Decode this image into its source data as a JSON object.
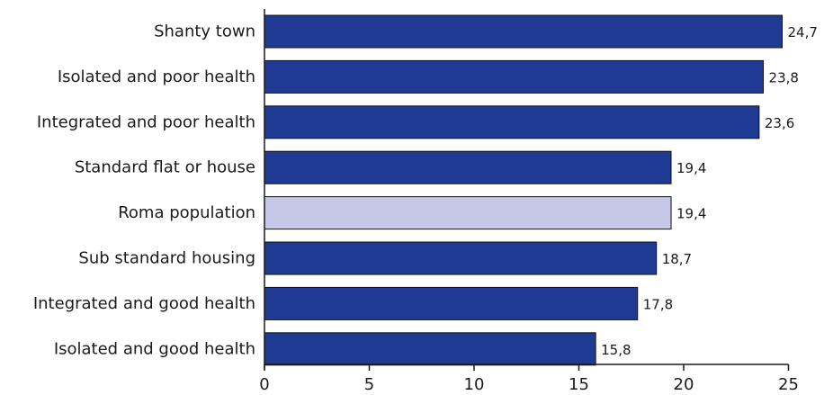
{
  "chart_data": {
    "type": "bar",
    "orientation": "horizontal",
    "categories": [
      "Shanty town",
      "Isolated and poor health",
      "Integrated and poor health",
      "Standard flat or house",
      "Roma population",
      "Sub standard housing",
      "Integrated and good health",
      "Isolated and good health"
    ],
    "values": [
      24.7,
      23.8,
      23.6,
      19.4,
      19.4,
      18.7,
      17.8,
      15.8
    ],
    "value_labels": [
      "24,7",
      "23,8",
      "23,6",
      "19,4",
      "19,4",
      "18,7",
      "17,8",
      "15,8"
    ],
    "bar_colors": [
      "#1f3a93",
      "#1f3a93",
      "#1f3a93",
      "#1f3a93",
      "#c5c8e6",
      "#1f3a93",
      "#1f3a93",
      "#1f3a93"
    ],
    "xlim": [
      0,
      25
    ],
    "xticks": [
      0,
      5,
      10,
      15,
      20,
      25
    ],
    "xtick_labels": [
      "0",
      "5",
      "10",
      "15",
      "20",
      "25"
    ],
    "grid": false,
    "legend": "none"
  },
  "colors": {
    "bar": "#1f3a93",
    "highlight_bar": "#c5c8e6",
    "bar_outline": "#111111",
    "axis": "#1a1a1a"
  }
}
